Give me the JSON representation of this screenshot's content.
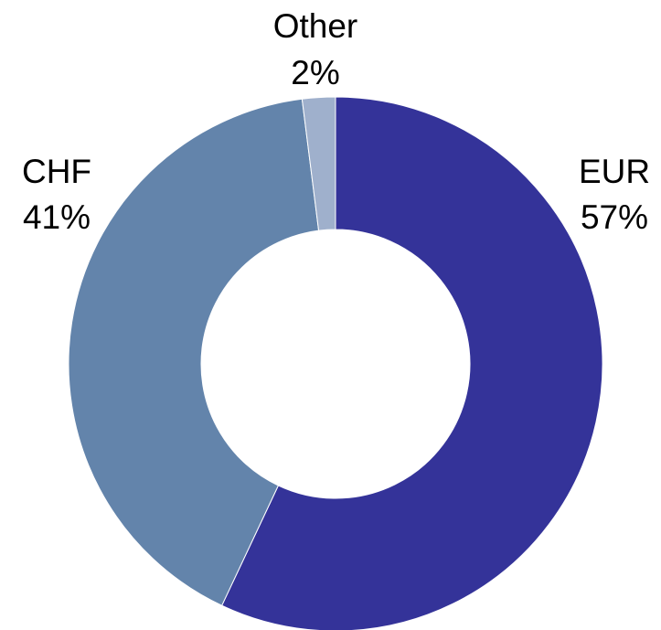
{
  "chart_data": {
    "type": "donut",
    "categories": [
      "EUR",
      "CHF",
      "Other"
    ],
    "values": [
      57,
      41,
      2
    ],
    "value_labels": [
      "57%",
      "41%",
      "2%"
    ],
    "colors": [
      "#343399",
      "#6384ab",
      "#9fb0cc"
    ]
  }
}
